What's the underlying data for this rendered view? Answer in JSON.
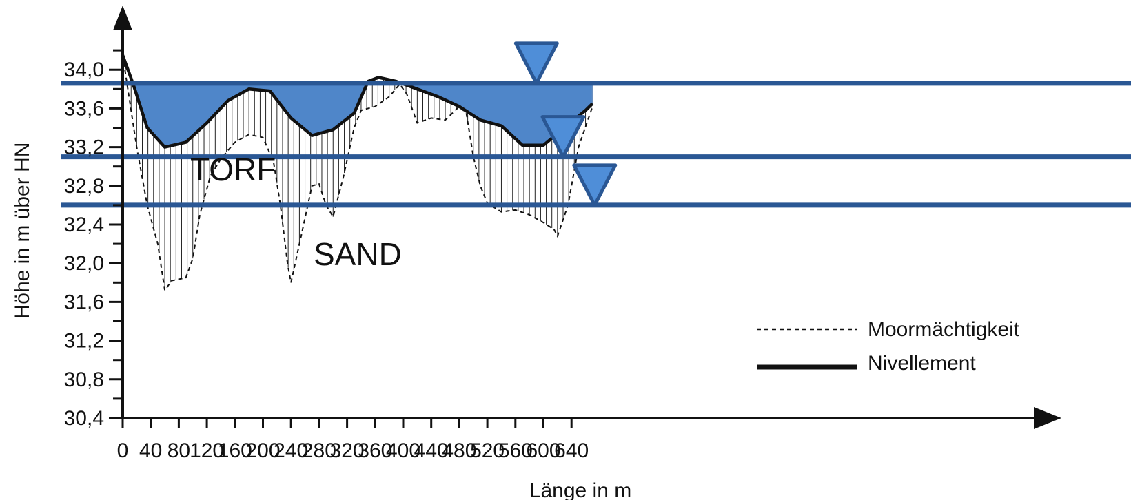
{
  "chart_data": {
    "type": "line",
    "xlabel": "Länge in m",
    "ylabel": "Höhe in m über HN",
    "xlim": [
      0,
      680
    ],
    "ylim": [
      30.4,
      34.4
    ],
    "x_ticks": [
      "0",
      "40",
      "80",
      "120",
      "160",
      "200",
      "240",
      "280",
      "320",
      "360",
      "400",
      "440",
      "480",
      "520",
      "560",
      "600",
      "640"
    ],
    "y_ticks": [
      "30,4",
      "30,8",
      "31,2",
      "31,6",
      "32,0",
      "32,4",
      "32,8",
      "33,2",
      "33,6",
      "34,0"
    ],
    "y_tick_values": [
      30.4,
      30.8,
      31.2,
      31.6,
      32.0,
      32.4,
      32.8,
      33.2,
      33.6,
      34.0
    ],
    "x_tick_values": [
      0,
      40,
      80,
      120,
      160,
      200,
      240,
      280,
      320,
      360,
      400,
      440,
      480,
      520,
      560,
      600,
      640
    ],
    "region_labels": [
      {
        "text": "TORF",
        "x": 80,
        "y": 32.7
      },
      {
        "text": "SAND",
        "x": 170,
        "y": 31.95
      }
    ],
    "legend": {
      "position": "bottom-right",
      "entries": [
        {
          "name": "Moormächtigkeit",
          "style": "dashed"
        },
        {
          "name": "Nivellement",
          "style": "solid-thick"
        }
      ]
    },
    "series": [
      {
        "name": "Nivellement",
        "style": "solid",
        "color": "#111111",
        "points": [
          [
            0,
            34.15
          ],
          [
            15,
            33.85
          ],
          [
            35,
            33.4
          ],
          [
            60,
            33.2
          ],
          [
            90,
            33.25
          ],
          [
            120,
            33.45
          ],
          [
            150,
            33.68
          ],
          [
            180,
            33.8
          ],
          [
            210,
            33.78
          ],
          [
            240,
            33.5
          ],
          [
            270,
            33.32
          ],
          [
            300,
            33.38
          ],
          [
            330,
            33.55
          ],
          [
            350,
            33.88
          ],
          [
            365,
            33.92
          ],
          [
            390,
            33.88
          ],
          [
            420,
            33.8
          ],
          [
            450,
            33.72
          ],
          [
            480,
            33.62
          ],
          [
            510,
            33.48
          ],
          [
            540,
            33.42
          ],
          [
            570,
            33.22
          ],
          [
            600,
            33.22
          ],
          [
            630,
            33.4
          ],
          [
            660,
            33.58
          ],
          [
            670,
            33.65
          ]
        ]
      },
      {
        "name": "Moormächtigkeit",
        "style": "dashed",
        "color": "#111111",
        "points": [
          [
            0,
            34.15
          ],
          [
            20,
            33.2
          ],
          [
            35,
            32.6
          ],
          [
            50,
            32.2
          ],
          [
            60,
            31.72
          ],
          [
            70,
            31.82
          ],
          [
            90,
            31.85
          ],
          [
            100,
            32.05
          ],
          [
            110,
            32.5
          ],
          [
            125,
            32.9
          ],
          [
            140,
            33.08
          ],
          [
            160,
            33.25
          ],
          [
            180,
            33.33
          ],
          [
            200,
            33.3
          ],
          [
            215,
            33.05
          ],
          [
            225,
            32.6
          ],
          [
            235,
            32.0
          ],
          [
            240,
            31.8
          ],
          [
            255,
            32.3
          ],
          [
            270,
            32.8
          ],
          [
            280,
            32.82
          ],
          [
            290,
            32.6
          ],
          [
            300,
            32.48
          ],
          [
            315,
            32.9
          ],
          [
            330,
            33.4
          ],
          [
            340,
            33.58
          ],
          [
            360,
            33.62
          ],
          [
            380,
            33.72
          ],
          [
            395,
            33.85
          ],
          [
            405,
            33.75
          ],
          [
            420,
            33.45
          ],
          [
            440,
            33.5
          ],
          [
            460,
            33.48
          ],
          [
            470,
            33.55
          ],
          [
            480,
            33.62
          ],
          [
            490,
            33.55
          ],
          [
            500,
            33.1
          ],
          [
            510,
            32.8
          ],
          [
            520,
            32.62
          ],
          [
            540,
            32.53
          ],
          [
            560,
            32.55
          ],
          [
            580,
            32.5
          ],
          [
            600,
            32.42
          ],
          [
            615,
            32.35
          ],
          [
            620,
            32.28
          ],
          [
            635,
            32.6
          ],
          [
            650,
            33.2
          ],
          [
            670,
            33.62
          ]
        ]
      }
    ],
    "water_levels": [
      {
        "y": 33.86,
        "marker_x": 590,
        "marker_color": "#4f8ed8"
      },
      {
        "y": 33.1,
        "marker_x": 628,
        "marker_color": "#4f8ed8"
      },
      {
        "y": 32.6,
        "marker_x": 673,
        "marker_color": "#4f8ed8"
      }
    ],
    "colors": {
      "water_fill": "#4f86c9",
      "water_line": "#2a5794",
      "axis": "#111111",
      "hatch": "#222222"
    }
  }
}
